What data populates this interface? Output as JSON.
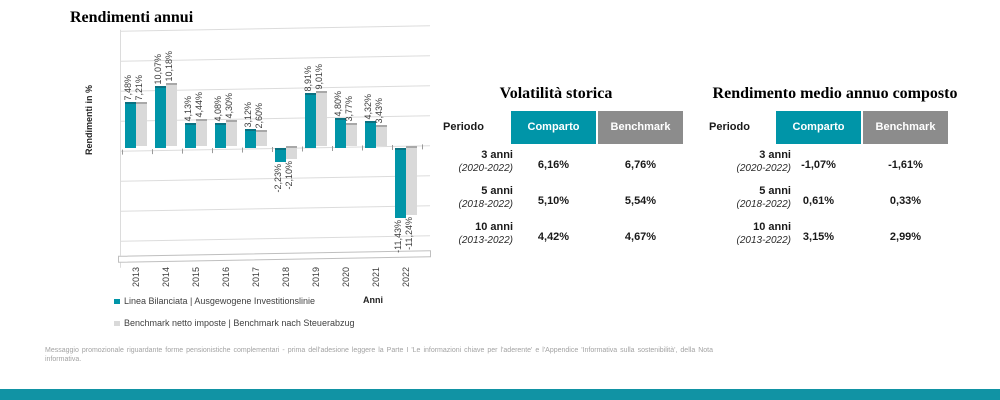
{
  "slide": {
    "tables": [
      {
        "title": "Volatilità storica",
        "headers": {
          "period": "Periodo",
          "comparto": "Comparto",
          "benchmark": "Benchmark"
        },
        "rows": [
          {
            "period": "3 anni",
            "range": "(2020-2022)",
            "comparto": "6,16%",
            "benchmark": "6,76%"
          },
          {
            "period": "5 anni",
            "range": "(2018-2022)",
            "comparto": "5,10%",
            "benchmark": "5,54%"
          },
          {
            "period": "10 anni",
            "range": "(2013-2022)",
            "comparto": "4,42%",
            "benchmark": "4,67%"
          }
        ]
      },
      {
        "title": "Rendimento medio annuo composto",
        "headers": {
          "period": "Periodo",
          "comparto": "Comparto",
          "benchmark": "Benchmark"
        },
        "rows": [
          {
            "period": "3 anni",
            "range": "(2020-2022)",
            "comparto": "-1,07%",
            "benchmark": "-1,61%"
          },
          {
            "period": "5 anni",
            "range": "(2018-2022)",
            "comparto": "0,61%",
            "benchmark": "0,33%"
          },
          {
            "period": "10 anni",
            "range": "(2013-2022)",
            "comparto": "3,15%",
            "benchmark": "2,99%"
          }
        ]
      }
    ],
    "footer": {
      "disclaimer": "Messaggio promozionale riguardante forme pensionistiche complementari - prima dell'adesione leggere la Parte I 'Le informazioni chiave per l'aderente' e l'Appendice 'Informativa sulla sostenibilità', della Nota informativa."
    },
    "colors": {
      "accent_teal": "#0095A8",
      "header_gray": "#8C8C8C",
      "benchmark_gray": "#D9D9D9",
      "bottom_bar_teal": "#1193A4"
    }
  },
  "chart_data": {
    "type": "bar",
    "title": "Rendimenti annui",
    "xlabel": "Anni",
    "ylabel": "Rendimenti in %",
    "categories": [
      "2013",
      "2014",
      "2015",
      "2016",
      "2017",
      "2018",
      "2019",
      "2020",
      "2021",
      "2022"
    ],
    "series": [
      {
        "name": "Linea Bilanciata | Ausgewogene Investitionslinie",
        "color": "#0095A8",
        "values": [
          7.48,
          10.07,
          4.13,
          4.08,
          3.12,
          -2.23,
          8.91,
          4.8,
          4.32,
          -11.43
        ],
        "labels": [
          "7,48%",
          "10,07%",
          "4,13%",
          "4,08%",
          "3,12%",
          "-2,23%",
          "8,91%",
          "4,80%",
          "4,32%",
          "-11,43%"
        ]
      },
      {
        "name": "Benchmark netto imposte | Benchmark nach Steuerabzug",
        "color": "#D9D9D9",
        "values": [
          7.21,
          10.18,
          4.44,
          4.3,
          2.6,
          -2.1,
          9.01,
          3.77,
          3.43,
          -11.24
        ],
        "labels": [
          "7,21%",
          "10,18%",
          "4,44%",
          "4,30%",
          "2,60%",
          "-2,10%",
          "9,01%",
          "3,77%",
          "3,43%",
          "-11,24%"
        ]
      }
    ],
    "ylim": [
      -14,
      12
    ],
    "grid": true,
    "legend_position": "bottom-left",
    "value_labels": "rotated-90"
  }
}
